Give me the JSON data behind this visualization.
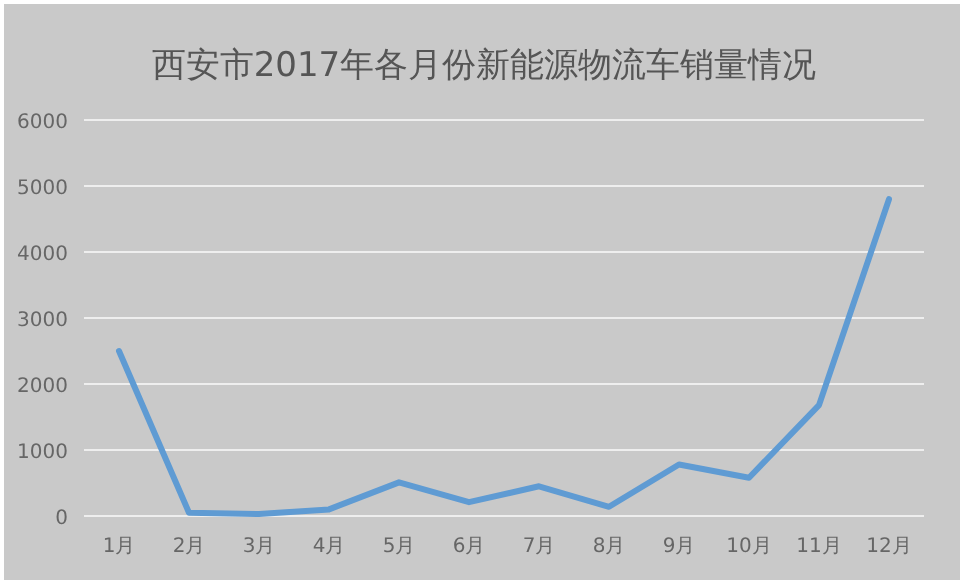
{
  "chart_data": {
    "type": "line",
    "title": "西安市2017年各月份新能源物流车销量情况",
    "categories": [
      "1月",
      "2月",
      "3月",
      "4月",
      "5月",
      "6月",
      "7月",
      "8月",
      "9月",
      "10月",
      "11月",
      "12月"
    ],
    "series": [
      {
        "color": "#5f9bd3",
        "values": [
          2500,
          50,
          30,
          100,
          510,
          210,
          450,
          140,
          780,
          580,
          1680,
          4800
        ]
      }
    ],
    "ylim": [
      0,
      6000
    ],
    "yticks": [
      0,
      1000,
      2000,
      3000,
      4000,
      5000,
      6000
    ],
    "grid": "y",
    "marker": "none",
    "line_style": "solid"
  }
}
